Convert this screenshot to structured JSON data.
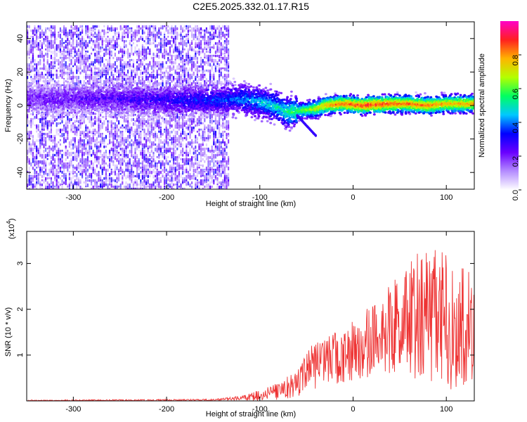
{
  "chart_data": [
    {
      "type": "heatmap",
      "title": "C2E5.2025.332.01.17.R15",
      "xlabel": "Height of straight line (km)",
      "ylabel": "Frequency (Hz)",
      "xlim": [
        -350,
        130
      ],
      "ylim": [
        -50,
        50
      ],
      "x_ticks": [
        -300,
        -200,
        -100,
        0,
        100
      ],
      "x_tick_labels": [
        "-300",
        "-200",
        "-100",
        "0",
        "100"
      ],
      "y_ticks": [
        -40,
        -20,
        0,
        20,
        40
      ],
      "y_tick_labels": [
        "-40",
        "-20",
        "0",
        "20",
        "40"
      ],
      "signal_track": [
        {
          "x": -350,
          "freq": 4,
          "amp": 0.2
        },
        {
          "x": -300,
          "freq": 4,
          "amp": 0.22
        },
        {
          "x": -250,
          "freq": 4,
          "amp": 0.25
        },
        {
          "x": -200,
          "freq": 3,
          "amp": 0.3
        },
        {
          "x": -150,
          "freq": 3,
          "amp": 0.35
        },
        {
          "x": -120,
          "freq": 4,
          "amp": 0.4
        },
        {
          "x": -100,
          "freq": 2,
          "amp": 0.45
        },
        {
          "x": -80,
          "freq": -1,
          "amp": 0.5
        },
        {
          "x": -70,
          "freq": -4,
          "amp": 0.55
        },
        {
          "x": -55,
          "freq": -3,
          "amp": 0.6
        },
        {
          "x": -40,
          "freq": -2,
          "amp": 0.7
        },
        {
          "x": -30,
          "freq": 0,
          "amp": 0.8
        },
        {
          "x": -10,
          "freq": 1,
          "amp": 0.85
        },
        {
          "x": 10,
          "freq": 0,
          "amp": 0.9
        },
        {
          "x": 40,
          "freq": 1,
          "amp": 0.88
        },
        {
          "x": 60,
          "freq": 1,
          "amp": 0.85
        },
        {
          "x": 80,
          "freq": 0,
          "amp": 0.85
        },
        {
          "x": 100,
          "freq": 1,
          "amp": 0.8
        },
        {
          "x": 130,
          "freq": 1,
          "amp": 0.8
        }
      ],
      "noise_region": {
        "x_from": -350,
        "x_to": -133,
        "freq_from": -50,
        "freq_to": 48
      },
      "colorbar": {
        "label": "Normalized spectral amplitude",
        "range": [
          0,
          1
        ],
        "ticks": [
          0.0,
          0.2,
          0.4,
          0.6,
          0.8
        ],
        "tick_labels": [
          "0.0",
          "0.2",
          "0.4",
          "0.6",
          "0.8"
        ],
        "colors": [
          "#ffffff",
          "#b48cff",
          "#6a00ff",
          "#0000ff",
          "#00c8ff",
          "#00ff60",
          "#b4ff00",
          "#ffb400",
          "#ff2020",
          "#ff00c8"
        ]
      }
    },
    {
      "type": "line",
      "title": "",
      "xlabel": "Height of straight line (km)",
      "ylabel": "SNR (10 * v/v)",
      "y_multiplier_label": "(x10",
      "y_multiplier_exp": "4",
      "y_multiplier_close": ")",
      "xlim": [
        -350,
        130
      ],
      "ylim": [
        0,
        3.7
      ],
      "x_ticks": [
        -300,
        -200,
        -100,
        0,
        100
      ],
      "x_tick_labels": [
        "-300",
        "-200",
        "-100",
        "0",
        "100"
      ],
      "y_ticks": [
        1,
        2,
        3
      ],
      "y_tick_labels": [
        "1",
        "2",
        "3"
      ],
      "color": "#ee3333",
      "envelope": [
        {
          "x": -350,
          "mean": 0.01,
          "spread": 0.01
        },
        {
          "x": -150,
          "mean": 0.02,
          "spread": 0.02
        },
        {
          "x": -120,
          "mean": 0.06,
          "spread": 0.05
        },
        {
          "x": -100,
          "mean": 0.12,
          "spread": 0.12
        },
        {
          "x": -80,
          "mean": 0.2,
          "spread": 0.2
        },
        {
          "x": -60,
          "mean": 0.4,
          "spread": 0.3
        },
        {
          "x": -45,
          "mean": 0.7,
          "spread": 0.5
        },
        {
          "x": -20,
          "mean": 0.9,
          "spread": 0.6
        },
        {
          "x": 0,
          "mean": 1.1,
          "spread": 0.7
        },
        {
          "x": 20,
          "mean": 1.3,
          "spread": 0.8
        },
        {
          "x": 40,
          "mean": 1.6,
          "spread": 1.0
        },
        {
          "x": 60,
          "mean": 1.7,
          "spread": 1.4
        },
        {
          "x": 80,
          "mean": 1.8,
          "spread": 1.6
        },
        {
          "x": 100,
          "mean": 1.7,
          "spread": 1.5
        },
        {
          "x": 130,
          "mean": 1.6,
          "spread": 1.2
        }
      ]
    }
  ]
}
